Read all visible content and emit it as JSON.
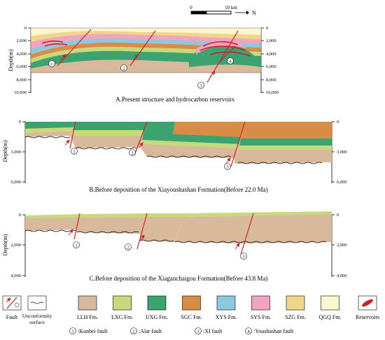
{
  "scale_bar": {
    "start": "0",
    "end": "10 km",
    "north": "N"
  },
  "panels": [
    {
      "caption": "A.Present structure and hydrocarbon reservoirs",
      "axis_title": "Depth(m)",
      "left_ticks": [
        "0",
        "2,000",
        "4,000",
        "6,000",
        "8,000",
        "10,000"
      ],
      "right_ticks": [
        "0",
        "2,000",
        "4,000",
        "6,000",
        "8,000",
        "10,000"
      ],
      "fault_labels": [
        "1",
        "2",
        "3",
        "4"
      ]
    },
    {
      "caption": "B.Before deposition of the Xiayoushashan Formation(Before 22.0 Ma)",
      "axis_title": "Depth(m)",
      "left_ticks": [
        "0",
        "3,000",
        "6,000"
      ],
      "right_ticks": [
        "0",
        "3,000",
        "6,000"
      ],
      "fault_labels": [
        "1",
        "2",
        "3"
      ]
    },
    {
      "caption": "C.Before deposition of the Xiaganchaigou Formation(Before 43.8 Ma)",
      "axis_title": "Depth(m)",
      "left_ticks": [
        "0",
        "2,000",
        "4,000"
      ],
      "right_ticks": [
        "0",
        "2,000",
        "4,000"
      ],
      "fault_labels": [
        "1",
        "2",
        "3"
      ]
    }
  ],
  "legend": {
    "items": [
      {
        "label": "Fault",
        "symbol": "fault-symbol"
      },
      {
        "label": "Unconformity surface",
        "line1": "Unconformity",
        "line2": "surface",
        "symbol": "unconformity-symbol"
      },
      {
        "label": "LLH Fm.",
        "color": "#d9b99b"
      },
      {
        "label": "LXG Fm.",
        "color": "#c8d97b"
      },
      {
        "label": "UXG Fm.",
        "color": "#3aa36f"
      },
      {
        "label": "SGC Fm.",
        "color": "#d98c45"
      },
      {
        "label": "XYS Fm.",
        "color": "#8ec8de"
      },
      {
        "label": "SYS Fm.",
        "color": "#f3a3c2"
      },
      {
        "label": "SZG Fm.",
        "color": "#f0d58c"
      },
      {
        "label": "QGQ Fm.",
        "color": "#fbf6cf"
      },
      {
        "label": "Reservoirs",
        "symbol": "reservoir-symbol"
      }
    ],
    "faults": [
      {
        "num": "1",
        "name": ":Kunbei fault"
      },
      {
        "num": "2",
        "name": ":Alar fault"
      },
      {
        "num": "3",
        "name": ":XI fault"
      },
      {
        "num": "4",
        "name": ":Youshashan fault"
      }
    ]
  }
}
